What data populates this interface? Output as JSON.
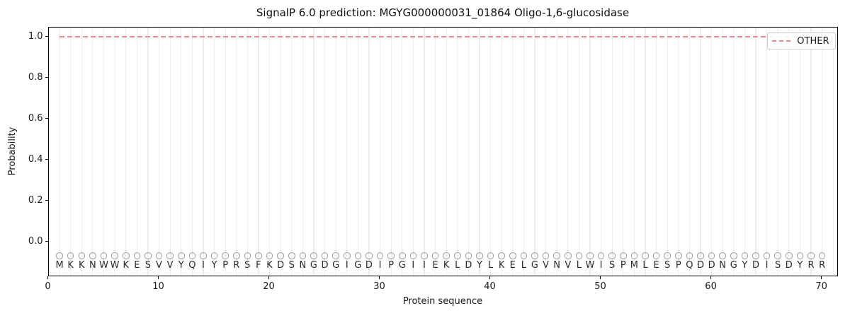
{
  "chart_data": {
    "type": "line",
    "title": "SignalP 6.0 prediction: MGYG000000031_01864 Oligo-1,6-glucosidase",
    "xlabel": "Protein sequence",
    "ylabel": "Probability",
    "xlim": [
      0,
      71.5
    ],
    "ylim": [
      -0.167,
      1.046
    ],
    "x_ticks": [
      0,
      10,
      20,
      30,
      40,
      50,
      60,
      70
    ],
    "y_tick_labels": [
      "0.0",
      "0.2",
      "0.4",
      "0.6",
      "0.8",
      "1.0"
    ],
    "y_tick_values": [
      0.0,
      0.2,
      0.4,
      0.6,
      0.8,
      1.0
    ],
    "grid": "vertical line at every residue position, light gray, full height",
    "legend_position": "upper right",
    "series": [
      {
        "name": "OTHER",
        "line_style": "dashed",
        "color": "#f08989",
        "x_start": 1,
        "x_end": 70,
        "constant_value": 1.0
      }
    ],
    "sequence": "MKKNWWKESVVYQIYPRSFKDSNGDGIGDIPGIIEKLDYLKELGVNVLWISPMLESPQDDNGYDISDYRR",
    "sequence_length": 70,
    "marker": {
      "shape": "open-circle",
      "y_value": -0.065,
      "color": "#9c9c9c"
    },
    "letter_y_value": -0.112,
    "colors": {
      "grid": "#ededed",
      "spine": "#000000",
      "letters": "#2a2a2a",
      "tick_labels": "#1a1a1a",
      "series_other": "#f08989"
    }
  }
}
